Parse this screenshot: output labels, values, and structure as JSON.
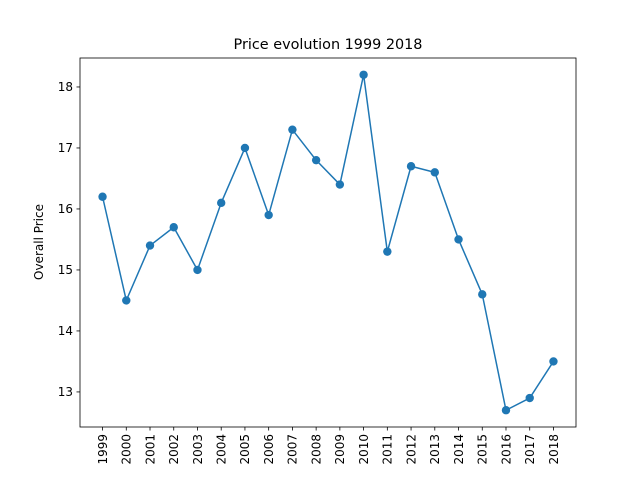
{
  "chart_data": {
    "type": "line",
    "title": "Price evolution 1999 2018",
    "xlabel": "",
    "ylabel": "Overall Price",
    "categories": [
      "1999",
      "2000",
      "2001",
      "2002",
      "2003",
      "2004",
      "2005",
      "2006",
      "2007",
      "2008",
      "2009",
      "2010",
      "2011",
      "2012",
      "2013",
      "2014",
      "2015",
      "2016",
      "2017",
      "2018"
    ],
    "series": [
      {
        "values": [
          16.2,
          14.5,
          15.4,
          15.7,
          15.0,
          16.1,
          17.0,
          15.9,
          17.3,
          16.8,
          16.4,
          18.2,
          15.3,
          16.7,
          16.6,
          15.5,
          14.6,
          12.7,
          12.9,
          13.5
        ]
      }
    ],
    "ylim": [
      12.425,
      18.475
    ],
    "yticks": [
      13,
      14,
      15,
      16,
      17,
      18
    ],
    "grid": false,
    "legend": "none",
    "colors": {
      "line": "#1f77b4",
      "marker": "#1f77b4"
    }
  }
}
